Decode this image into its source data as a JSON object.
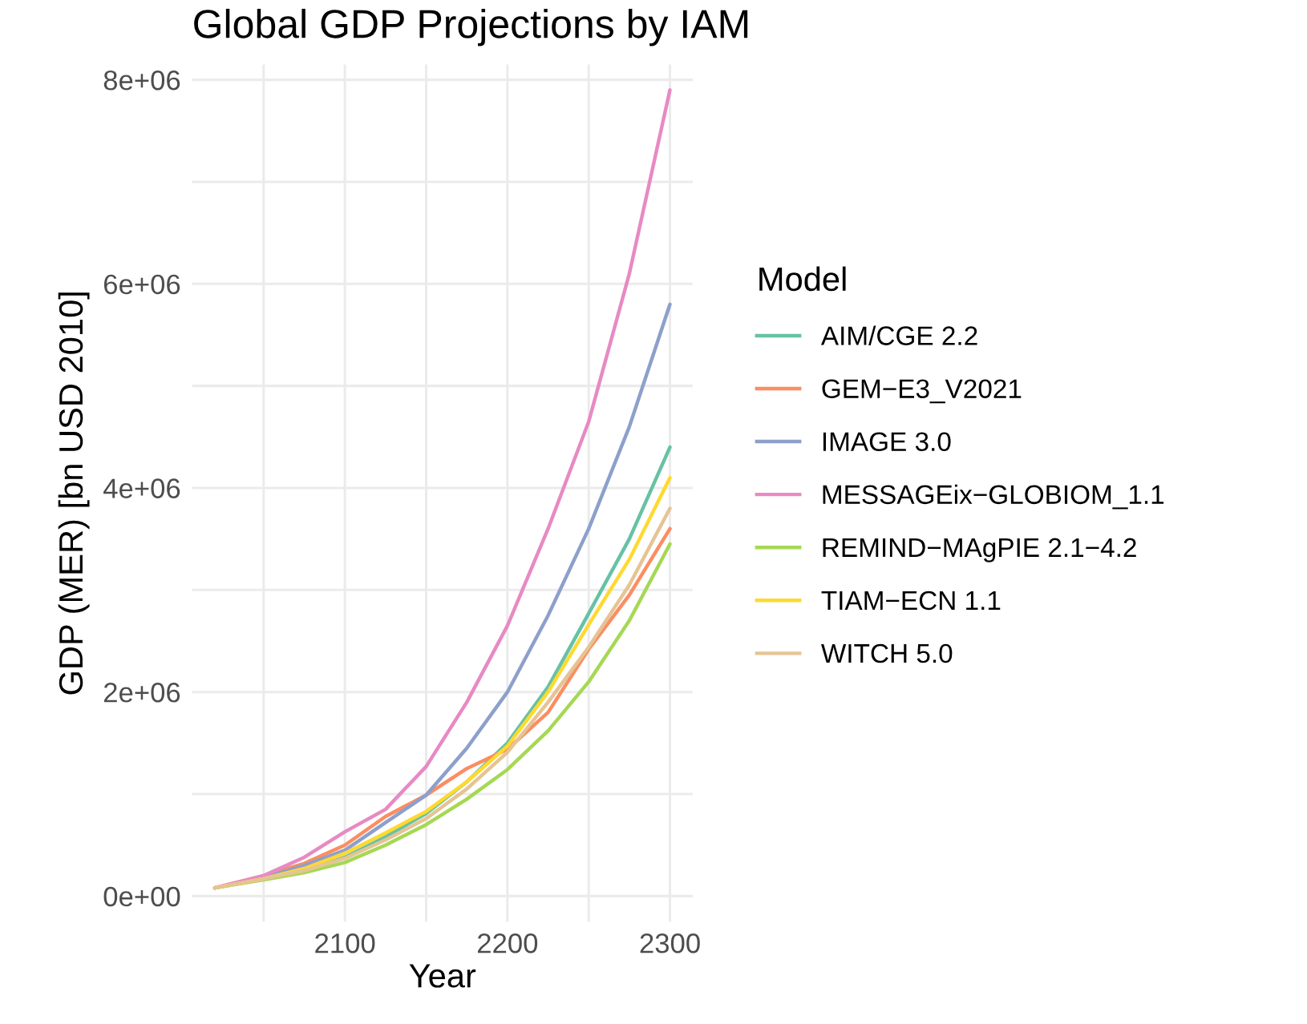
{
  "chart_data": {
    "type": "line",
    "title": "Global GDP Projections by IAM",
    "xlabel": "Year",
    "ylabel": "GDP (MER) [bn USD 2010]",
    "legend_title": "Model",
    "legend": "right",
    "grid": true,
    "marker": "none",
    "line_style": "solid",
    "x": [
      2020,
      2050,
      2075,
      2100,
      2125,
      2150,
      2175,
      2200,
      2225,
      2250,
      2275,
      2300
    ],
    "xlim": [
      2006,
      2314
    ],
    "xticks": [
      {
        "value": 2050,
        "label": null
      },
      2100,
      {
        "value": 2150,
        "label": null
      },
      2200,
      {
        "value": 2250,
        "label": null
      },
      2300
    ],
    "ylim": [
      -250000,
      8150000
    ],
    "yticks": [
      {
        "value": 0,
        "label": "0e+00"
      },
      {
        "value": 1000000,
        "label": null
      },
      {
        "value": 2000000,
        "label": "2e+06"
      },
      {
        "value": 3000000,
        "label": null
      },
      {
        "value": 4000000,
        "label": "4e+06"
      },
      {
        "value": 5000000,
        "label": null
      },
      {
        "value": 6000000,
        "label": "6e+06"
      },
      {
        "value": 7000000,
        "label": null
      },
      {
        "value": 8000000,
        "label": "8e+06"
      }
    ],
    "series": [
      {
        "name": "AIM/CGE 2.2",
        "color": "#66c2a5",
        "values": [
          80000,
          170000,
          250000,
          380000,
          580000,
          810000,
          1120000,
          1500000,
          2050000,
          2770000,
          3500000,
          4400000
        ]
      },
      {
        "name": "GEM−E3_V2021",
        "color": "#fc8d62",
        "values": [
          80000,
          200000,
          320000,
          500000,
          780000,
          990000,
          1250000,
          1440000,
          1800000,
          2420000,
          2950000,
          3600000
        ]
      },
      {
        "name": "IMAGE 3.0",
        "color": "#8da0cb",
        "values": [
          80000,
          180000,
          300000,
          450000,
          720000,
          990000,
          1450000,
          2000000,
          2750000,
          3600000,
          4600000,
          5800000
        ]
      },
      {
        "name": "MESSAGEix−GLOBIOM_1.1",
        "color": "#e78ac3",
        "values": [
          80000,
          200000,
          380000,
          630000,
          850000,
          1270000,
          1900000,
          2650000,
          3600000,
          4650000,
          6100000,
          7900000
        ]
      },
      {
        "name": "REMIND−MAgPIE 2.1−4.2",
        "color": "#a6d854",
        "values": [
          80000,
          160000,
          230000,
          330000,
          500000,
          700000,
          950000,
          1240000,
          1620000,
          2100000,
          2700000,
          3450000
        ]
      },
      {
        "name": "TIAM−ECN 1.1",
        "color": "#ffd92f",
        "values": [
          80000,
          170000,
          270000,
          420000,
          620000,
          830000,
          1120000,
          1470000,
          2000000,
          2660000,
          3300000,
          4100000
        ]
      },
      {
        "name": "WITCH 5.0",
        "color": "#e5c494",
        "values": [
          80000,
          170000,
          250000,
          370000,
          550000,
          760000,
          1050000,
          1410000,
          1900000,
          2440000,
          3050000,
          3800000
        ]
      }
    ]
  }
}
